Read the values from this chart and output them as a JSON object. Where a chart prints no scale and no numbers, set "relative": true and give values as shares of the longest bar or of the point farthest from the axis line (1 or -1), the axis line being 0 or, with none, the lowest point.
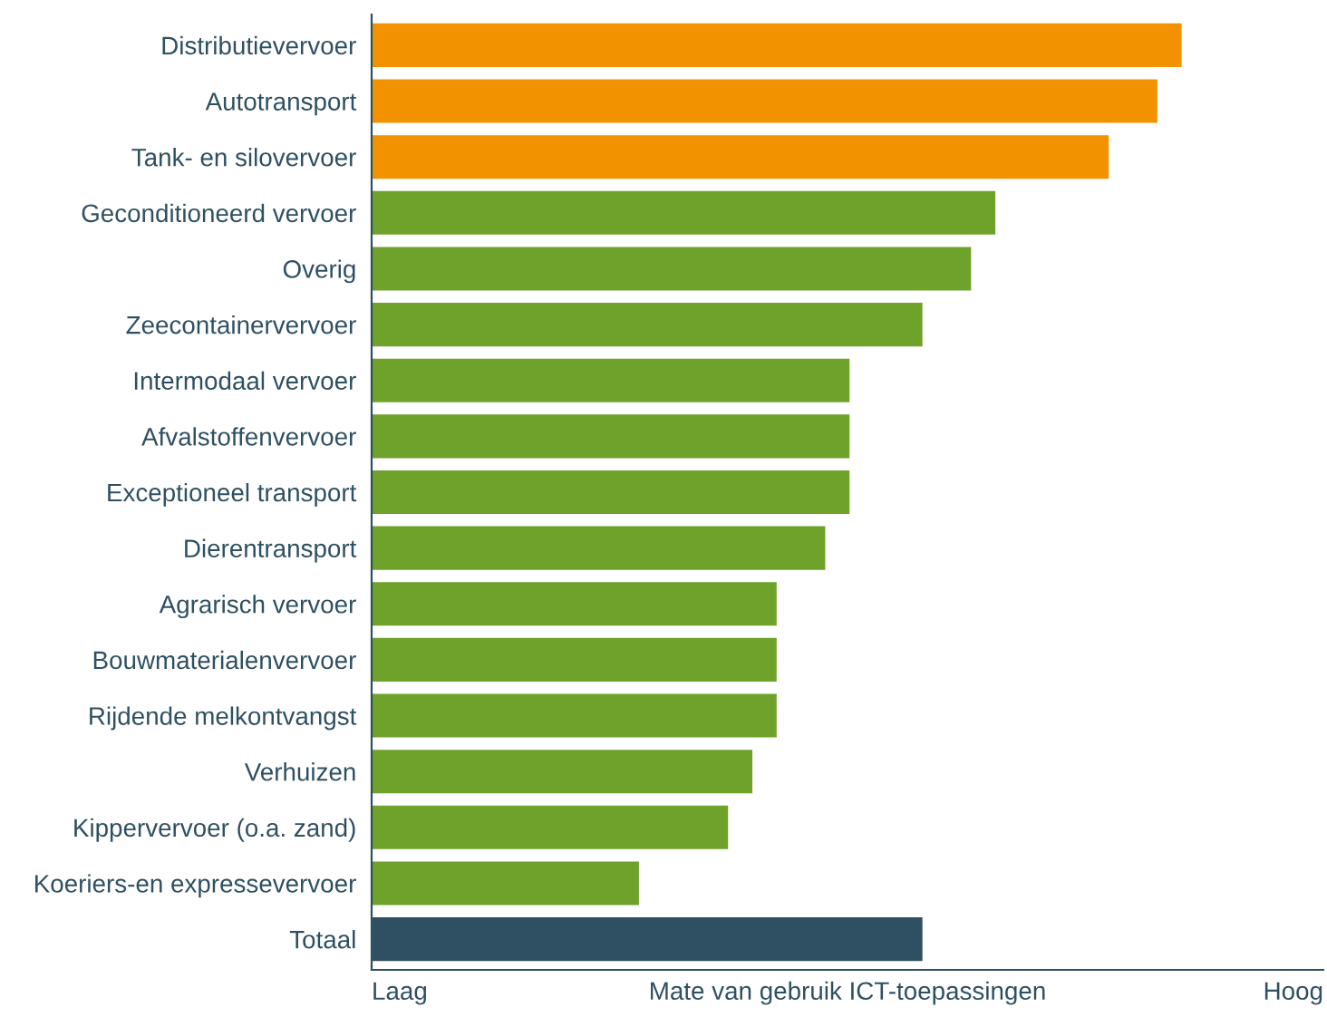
{
  "chart_data": {
    "type": "bar",
    "orientation": "horizontal",
    "relative": true,
    "xlabel": "Mate van gebruik ICT-toepassingen",
    "categories": [
      "Distributievervoer",
      "Autotransport",
      "Tank- en silovervoer",
      "Geconditioneerd vervoer",
      "Overig",
      "Zeecontainervervoer",
      "Intermodaal vervoer",
      "Afvalstoffenvervoer",
      "Exceptioneel transport",
      "Dierentransport",
      "Agrarisch vervoer",
      "Bouwmaterialenvervoer",
      "Rijdende melkontvangst",
      "Verhuizen",
      "Kippervervoer (o.a. zand)",
      "Koeriers-en expressevervoer",
      "Totaal"
    ],
    "values": [
      1,
      0.97,
      0.91,
      0.77,
      0.74,
      0.68,
      0.59,
      0.59,
      0.59,
      0.56,
      0.5,
      0.5,
      0.5,
      0.47,
      0.44,
      0.33,
      0.68
    ],
    "colors": [
      "#f39200",
      "#f39200",
      "#f39200",
      "#6fa22a",
      "#6fa22a",
      "#6fa22a",
      "#6fa22a",
      "#6fa22a",
      "#6fa22a",
      "#6fa22a",
      "#6fa22a",
      "#6fa22a",
      "#6fa22a",
      "#6fa22a",
      "#6fa22a",
      "#6fa22a",
      "#2e5062"
    ],
    "annotations": [
      "Laag",
      "Hoog"
    ],
    "grid": false,
    "legend": false
  }
}
